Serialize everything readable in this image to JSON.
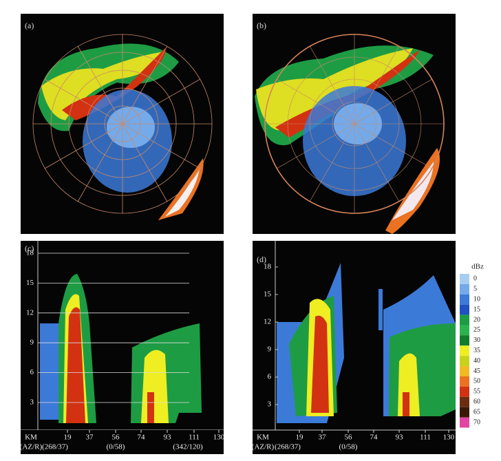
{
  "panels": [
    {
      "label": "(a)"
    },
    {
      "label": "(b)"
    },
    {
      "label": "(c)",
      "y_ticks": [
        3,
        6,
        9,
        12,
        15,
        18
      ],
      "x_ticks": [
        19,
        37,
        56,
        74,
        93,
        111,
        130
      ],
      "x_unit": "KM",
      "az_label": "(AZ/R)",
      "az_r": [
        "(268/37)",
        "(0/58)",
        "(342/120)"
      ]
    },
    {
      "label": "(d)",
      "y_ticks": [
        3,
        6,
        9,
        12,
        15,
        18
      ],
      "x_ticks": [
        19,
        37,
        56,
        74,
        93,
        111,
        130
      ],
      "x_unit": "KM",
      "az_label": "(AZ/R)",
      "az_r": [
        "(268/37)",
        "(0/58)"
      ]
    }
  ],
  "legend": {
    "title": "dBz",
    "items": [
      {
        "label": "0",
        "color": "#a8cdf2"
      },
      {
        "label": "5",
        "color": "#74aaea"
      },
      {
        "label": "10",
        "color": "#3c7ad8"
      },
      {
        "label": "15",
        "color": "#2150c0"
      },
      {
        "label": "20",
        "color": "#1e9c44"
      },
      {
        "label": "25",
        "color": "#2ab450"
      },
      {
        "label": "30",
        "color": "#137c2c"
      },
      {
        "label": "35",
        "color": "#eeee22"
      },
      {
        "label": "40",
        "color": "#c9d21a"
      },
      {
        "label": "45",
        "color": "#f2ba22"
      },
      {
        "label": "50",
        "color": "#ea7222"
      },
      {
        "label": "55",
        "color": "#d23212"
      },
      {
        "label": "60",
        "color": "#6c2c12"
      },
      {
        "label": "65",
        "color": "#3a1808"
      },
      {
        "label": "70",
        "color": "#e244a2"
      }
    ]
  }
}
